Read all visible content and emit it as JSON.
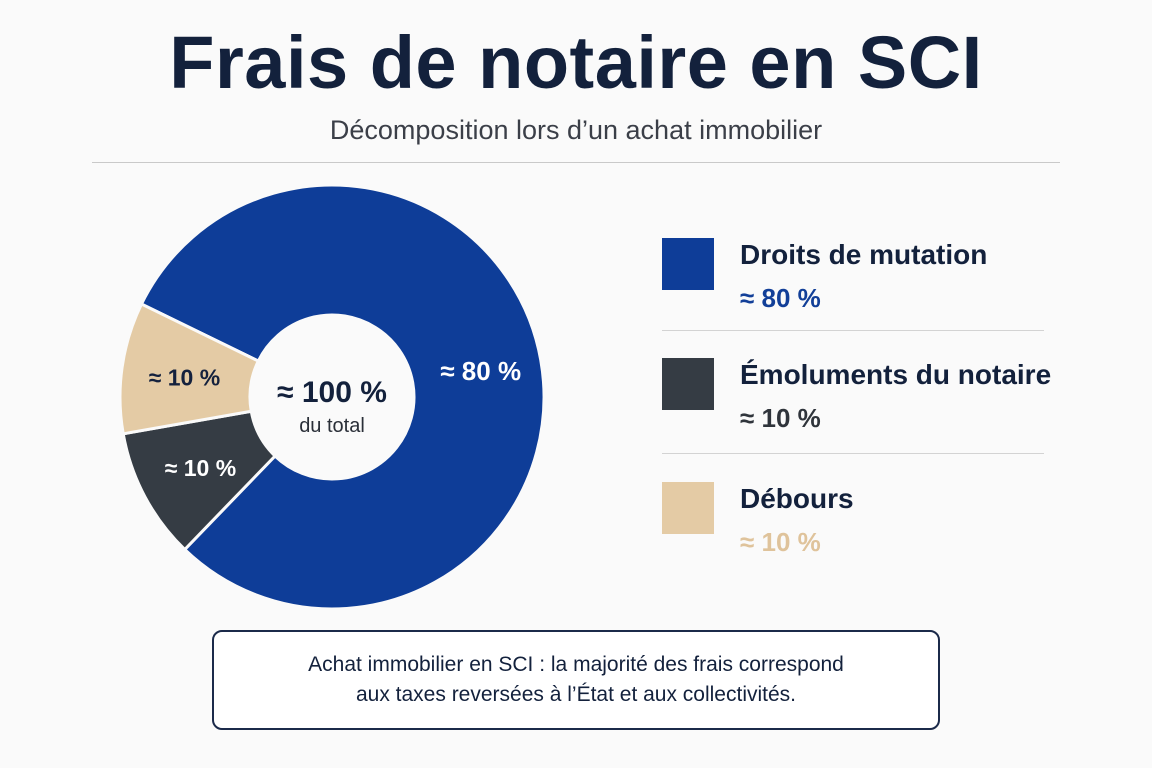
{
  "header": {
    "title": "Frais de notaire en SCI",
    "subtitle": "Décomposition lors d’un achat immobilier"
  },
  "chart_data": {
    "type": "pie",
    "donut": true,
    "categories": [
      "Droits de mutation",
      "Émoluments du notaire",
      "Débours"
    ],
    "values": [
      80,
      10,
      10
    ],
    "slice_labels": [
      "≈ 80 %",
      "≈ 10 %",
      "≈ 10 %"
    ],
    "colors": [
      "#0e3d98",
      "#353c44",
      "#e4cba5"
    ],
    "center_value": "≈ 100 %",
    "center_caption": "du total",
    "legend_position": "right"
  },
  "legend": {
    "items": [
      {
        "label": "Droits de mutation",
        "value": "≈ 80 %",
        "value_color": "#123f98"
      },
      {
        "label": "Émoluments du notaire",
        "value": "≈ 10 %",
        "value_color": "#2f343b"
      },
      {
        "label": "Débours",
        "value": "≈ 10 %",
        "value_color": "#dfc39b"
      }
    ]
  },
  "note": {
    "line1": "Achat immobilier en SCI : la majorité des frais correspond",
    "line2": "aux taxes reversées à l’État et aux collectivités."
  }
}
